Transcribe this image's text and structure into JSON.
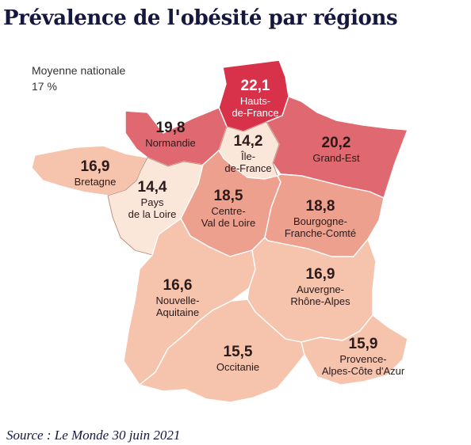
{
  "title": "Prévalence de l'obésité par régions",
  "national_average": {
    "label": "Moyenne nationale",
    "value": "17 %"
  },
  "source": "Source : Le Monde 30 juin 2021",
  "colors": {
    "lowest": "#fbe6da",
    "low": "#f6c3ad",
    "mid": "#eea08f",
    "high": "#e06870",
    "highest": "#d8324a"
  },
  "regions": [
    {
      "id": "hauts-de-france",
      "value": "22,1",
      "name": [
        "Hauts-",
        "de-France"
      ],
      "color": "#d8324a",
      "text_color": "#ffffff"
    },
    {
      "id": "normandie",
      "value": "19,8",
      "name": [
        "Normandie"
      ],
      "color": "#e06870",
      "text_color": "#2a1a1a"
    },
    {
      "id": "grand-est",
      "value": "20,2",
      "name": [
        "Grand-Est"
      ],
      "color": "#e06870",
      "text_color": "#2a1a1a"
    },
    {
      "id": "ile-de-france",
      "value": "14,2",
      "name": [
        "Île-",
        "de-France"
      ],
      "color": "#fbe6da",
      "text_color": "#2a1a1a"
    },
    {
      "id": "bretagne",
      "value": "16,9",
      "name": [
        "Bretagne"
      ],
      "color": "#f6c3ad",
      "text_color": "#2a1a1a"
    },
    {
      "id": "pays-de-la-loire",
      "value": "14,4",
      "name": [
        "Pays",
        "de la Loire"
      ],
      "color": "#fbe6da",
      "text_color": "#2a1a1a"
    },
    {
      "id": "centre-val-de-loire",
      "value": "18,5",
      "name": [
        "Centre-",
        "Val de Loire"
      ],
      "color": "#eea08f",
      "text_color": "#2a1a1a"
    },
    {
      "id": "bourgogne-franche-comte",
      "value": "18,8",
      "name": [
        "Bourgogne-",
        "Franche-Comté"
      ],
      "color": "#eea08f",
      "text_color": "#2a1a1a"
    },
    {
      "id": "nouvelle-aquitaine",
      "value": "16,6",
      "name": [
        "Nouvelle-",
        "Aquitaine"
      ],
      "color": "#f6c3ad",
      "text_color": "#2a1a1a"
    },
    {
      "id": "auvergne-rhone-alpes",
      "value": "16,9",
      "name": [
        "Auvergne-",
        "Rhône-Alpes"
      ],
      "color": "#f6c3ad",
      "text_color": "#2a1a1a"
    },
    {
      "id": "occitanie",
      "value": "15,5",
      "name": [
        "Occitanie"
      ],
      "color": "#f6c3ad",
      "text_color": "#2a1a1a"
    },
    {
      "id": "provence-alpes-cote-d-azur",
      "value": "15,9",
      "name": [
        "Provence-",
        "Alpes-Côte d'Azur"
      ],
      "color": "#f6c3ad",
      "text_color": "#2a1a1a"
    }
  ]
}
